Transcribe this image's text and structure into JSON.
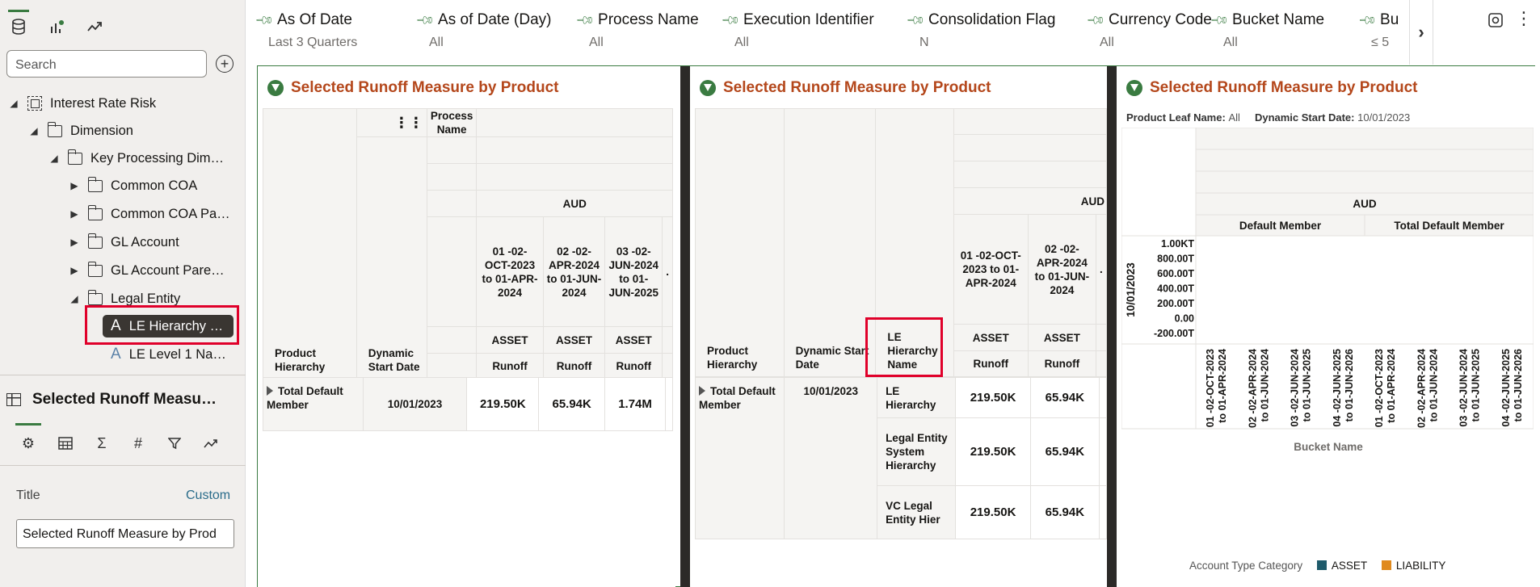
{
  "left_panel": {
    "search_placeholder": "Search",
    "tree": [
      {
        "label": "Interest Rate Risk"
      },
      {
        "label": "Dimension"
      },
      {
        "label": "Key Processing Dim…"
      },
      {
        "label": "Common COA"
      },
      {
        "label": "Common COA Pa…"
      },
      {
        "label": "GL Account"
      },
      {
        "label": "GL Account Pare…"
      },
      {
        "label": "Legal Entity"
      },
      {
        "label": "LE Hierarchy …"
      },
      {
        "label": "LE Level 1 Na…"
      }
    ],
    "properties_title": "Selected Runoff Measu…",
    "title_label": "Title",
    "title_mode": "Custom",
    "title_value": "Selected Runoff Measure by Prod"
  },
  "filters": [
    {
      "name": "As Of Date",
      "value": "Last 3 Quarters"
    },
    {
      "name": "As of Date (Day)",
      "value": "All"
    },
    {
      "name": "Process Name",
      "value": "All"
    },
    {
      "name": "Execution Identifier",
      "value": "All"
    },
    {
      "name": "Consolidation Flag",
      "value": "N"
    },
    {
      "name": "Currency Code",
      "value": "All"
    },
    {
      "name": "Bucket Name",
      "value": "All"
    },
    {
      "name": "Bu",
      "value": "≤ 5"
    }
  ],
  "view1": {
    "title": "Selected Runoff Measure by Product",
    "process_name": "Process Name",
    "currency": "AUD",
    "col_product": "Product Hierarchy",
    "col_date": "Dynamic Start Date",
    "buckets": [
      "01 -02-OCT-2023 to 01-APR-2024",
      "02 -02-APR-2024 to 01-JUN-2024",
      "03 -02-JUN-2024 to 01-JUN-2025"
    ],
    "asset": "ASSET",
    "runoff": "Runoff",
    "row_product": "Total Default Member",
    "row_date": "10/01/2023",
    "values": [
      "219.50K",
      "65.94K",
      "1.74M"
    ]
  },
  "view2": {
    "title": "Selected Runoff Measure by Product",
    "currency": "AUD",
    "col_product": "Product Hierarchy",
    "col_date": "Dynamic Start Date",
    "col_le": "LE Hierarchy Name",
    "buckets": [
      "01 -02-OCT-2023 to 01-APR-2024",
      "02 -02-APR-2024 to 01-JUN-2024"
    ],
    "asset": "ASSET",
    "runoff": "Runoff",
    "row_product": "Total Default Member",
    "row_date": "10/01/2023",
    "rows": [
      {
        "le": "LE Hierarchy",
        "v1": "219.50K",
        "v2": "65.94K"
      },
      {
        "le": "Legal Entity System Hierarchy",
        "v1": "219.50K",
        "v2": "65.94K"
      },
      {
        "le": "VC Legal Entity Hier",
        "v1": "219.50K",
        "v2": "65.94K"
      }
    ]
  },
  "view3": {
    "title": "Selected Runoff Measure by Product",
    "meta1_label": "Product Leaf Name:",
    "meta1_value": "All",
    "meta2_label": "Dynamic Start Date:",
    "meta2_value": "10/01/2023",
    "currency": "AUD",
    "groups": [
      "Default Member",
      "Total Default Member"
    ],
    "row_label": "10/01/2023",
    "y_ticks": [
      "1.00KT",
      "800.00T",
      "600.00T",
      "400.00T",
      "200.00T",
      "0.00",
      "-200.00T"
    ],
    "x_buckets": [
      "01 -02-OCT-2023 to 01-APR-2024",
      "02 -02-APR-2024 to 01-JUN-2024",
      "03 -02-JUN-2024 to 01-JUN-2025",
      "04 -02-JUN-2025 to 01-JUN-2026"
    ],
    "x_title": "Bucket Name",
    "legend_title": "Account Type Category",
    "legend": [
      {
        "name": "ASSET",
        "color": "#1f5b6b"
      },
      {
        "name": "LIABILITY",
        "color": "#e08a1e"
      }
    ]
  },
  "chart_data": {
    "type": "bar",
    "title": "Selected Runoff Measure by Product",
    "xlabel": "Bucket Name",
    "ylabel": "",
    "categories": [
      "01 -02-OCT-2023 to 01-APR-2024",
      "02 -02-APR-2024 to 01-JUN-2024",
      "03 -02-JUN-2024 to 01-JUN-2025",
      "04 -02-JUN-2025 to 01-JUN-2026"
    ],
    "groups": [
      "Default Member",
      "Total Default Member"
    ],
    "y_tick_labels": [
      "1.00KT",
      "800.00T",
      "600.00T",
      "400.00T",
      "200.00T",
      "0.00",
      "-200.00T"
    ],
    "series": [
      {
        "name": "ASSET",
        "values": [
          0,
          0,
          0,
          0
        ]
      },
      {
        "name": "LIABILITY",
        "values": [
          0,
          0,
          0,
          0
        ]
      }
    ],
    "legend": "bottom"
  }
}
